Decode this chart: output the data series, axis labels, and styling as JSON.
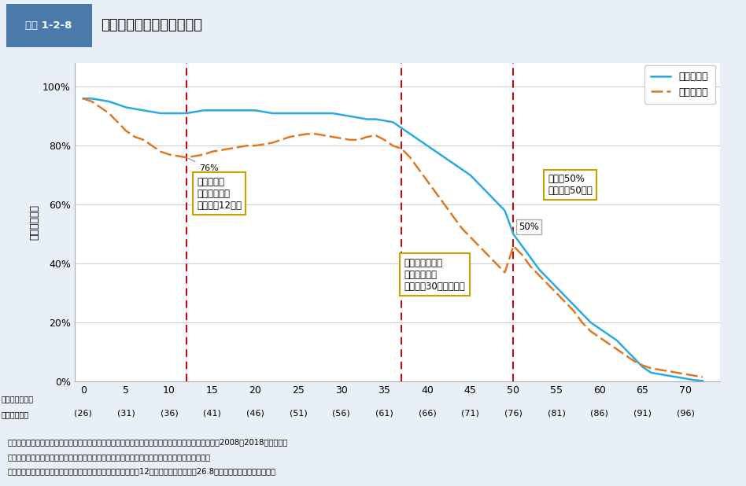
{
  "header_label": "図表 1-2-8",
  "header_title": "医籍登録後年数別の就業率",
  "ylabel": "就業率（％）",
  "x_ticks": [
    0,
    5,
    10,
    15,
    20,
    25,
    30,
    35,
    40,
    45,
    50,
    55,
    60,
    65,
    70
  ],
  "x_tick_labels_top": [
    "0",
    "5",
    "10",
    "15",
    "20",
    "25",
    "30",
    "35",
    "40",
    "45",
    "50",
    "55",
    "60",
    "65",
    "70"
  ],
  "x_tick_labels_bottom": [
    "(26)",
    "(31)",
    "(36)",
    "(41)",
    "(46)",
    "(51)",
    "(56)",
    "(61)",
    "(66)",
    "(71)",
    "(76)",
    "(81)",
    "(86)",
    "(91)",
    "(96)"
  ],
  "y_ticks": [
    0,
    20,
    40,
    60,
    80,
    100
  ],
  "y_tick_labels": [
    "0%",
    "20%",
    "40%",
    "60%",
    "80%",
    "100%"
  ],
  "ylim": [
    0,
    108
  ],
  "xlim": [
    -1,
    74
  ],
  "male_x": [
    0,
    1,
    2,
    3,
    4,
    5,
    6,
    7,
    8,
    9,
    10,
    11,
    12,
    13,
    14,
    15,
    16,
    17,
    18,
    19,
    20,
    21,
    22,
    23,
    24,
    25,
    26,
    27,
    28,
    29,
    30,
    31,
    32,
    33,
    34,
    35,
    36,
    37,
    38,
    39,
    40,
    41,
    42,
    43,
    44,
    45,
    46,
    47,
    48,
    49,
    50,
    51,
    52,
    53,
    54,
    55,
    56,
    57,
    58,
    59,
    60,
    61,
    62,
    63,
    64,
    65,
    66,
    67,
    68,
    69,
    70,
    71,
    72
  ],
  "male_y": [
    96,
    96,
    95.5,
    95,
    94,
    93,
    92.5,
    92,
    91.5,
    91,
    91,
    91,
    91,
    91.5,
    92,
    92,
    92,
    92,
    92,
    92,
    92,
    91.5,
    91,
    91,
    91,
    91,
    91,
    91,
    91,
    91,
    90.5,
    90,
    89.5,
    89,
    89,
    88.5,
    88,
    86,
    84,
    82,
    80,
    78,
    76,
    74,
    72,
    70,
    67,
    64,
    61,
    58,
    50,
    46,
    42,
    38,
    35,
    32,
    29,
    26,
    23,
    20,
    18,
    16,
    14,
    11,
    8,
    5,
    3,
    2.5,
    2,
    1.5,
    1,
    0.5,
    0.2
  ],
  "female_x": [
    0,
    1,
    2,
    3,
    4,
    5,
    6,
    7,
    8,
    9,
    10,
    11,
    12,
    13,
    14,
    15,
    16,
    17,
    18,
    19,
    20,
    21,
    22,
    23,
    24,
    25,
    26,
    27,
    28,
    29,
    30,
    31,
    32,
    33,
    34,
    35,
    36,
    37,
    38,
    39,
    40,
    41,
    42,
    43,
    44,
    45,
    46,
    47,
    48,
    49,
    50,
    51,
    52,
    53,
    54,
    55,
    56,
    57,
    58,
    59,
    60,
    61,
    62,
    63,
    64,
    65,
    66,
    67,
    68,
    69,
    70,
    71,
    72
  ],
  "female_y": [
    96,
    95,
    93,
    91,
    88,
    85,
    83,
    82,
    80,
    78,
    77,
    76.5,
    76,
    76.5,
    77,
    78,
    78.5,
    79,
    79.5,
    80,
    80,
    80.5,
    81,
    82,
    83,
    83.5,
    84,
    84,
    83.5,
    83,
    82.5,
    82,
    82,
    83,
    83.5,
    82,
    80,
    79,
    76,
    72,
    68,
    64,
    60,
    56,
    52,
    49,
    46,
    43,
    40,
    37,
    46,
    43,
    39,
    36,
    33,
    30,
    27,
    24,
    20,
    17,
    15,
    13,
    11,
    9,
    7,
    5.5,
    4.5,
    4,
    3.5,
    3,
    2.5,
    2,
    1.5
  ],
  "male_color": "#29ABE2",
  "female_color": "#E07820",
  "vline_x": [
    12,
    37,
    50
  ],
  "vline_color": "#CC0000",
  "footer_text1": "資料：厚生労働省政策統括官（統計・情報政策、労使関係担当）「医師・歯科医師・薬剤師調査」（2008～2018年）及び医",
  "footer_text2": "　　　籍登録データ（厚生労働省医政局医事課）により厚生労働省医政局医事課において作成。",
  "footer_text3": "（注）　推定年齢は医籍登録後年数が０年の届出票の満年齢（12月末時点）の平均値が26.8歳であることを考慮し設定。",
  "background_color": "#E8EFF6",
  "plot_bg_color": "#FFFFFF",
  "header_bg_color": "#D0DFF0",
  "header_box_color": "#4A7AAA"
}
